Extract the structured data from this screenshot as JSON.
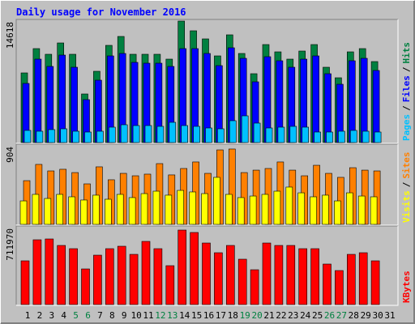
{
  "title": "Daily usage for November 2016",
  "separator": "/",
  "chart_data": [
    {
      "type": "bar",
      "ylim": [
        0,
        14618
      ],
      "yticks": [
        14618
      ],
      "series": [
        {
          "name": "Hits",
          "color": "#008040",
          "values": [
            8381,
            11305,
            10623,
            11987,
            10623,
            5847,
            8576,
            11695,
            12767,
            10623,
            10623,
            10623,
            10038,
            14618,
            13449,
            12474,
            10428,
            12962,
            10720,
            8284,
            11792,
            10915,
            10038,
            11012,
            11792,
            9063,
            7796,
            10915,
            11305,
            9745,
            null
          ]
        },
        {
          "name": "Files",
          "color": "#0000ff",
          "values": [
            7114,
            10038,
            9160,
            10525,
            9063,
            5165,
            7504,
            10427,
            10720,
            9648,
            9550,
            9550,
            9160,
            11304,
            11304,
            10720,
            9258,
            11402,
            10135,
            7309,
            10330,
            9842,
            9063,
            10038,
            10427,
            8283,
            7016,
            9842,
            10135,
            8673,
            null
          ]
        },
        {
          "name": "Pages",
          "color": "#00c0ff",
          "values": [
            1462,
            1364,
            1559,
            1657,
            1364,
            1267,
            1364,
            1852,
            2144,
            2046,
            2046,
            1949,
            2436,
            2046,
            1949,
            1754,
            1657,
            2631,
            3216,
            2339,
            1754,
            1852,
            1949,
            1852,
            1267,
            1267,
            1364,
            1462,
            1364,
            1267,
            null
          ]
        }
      ]
    },
    {
      "type": "bar",
      "ylim": [
        0,
        904
      ],
      "yticks": [
        904
      ],
      "series": [
        {
          "name": "Sites",
          "color": "#ff8000",
          "values": [
            503,
            690,
            615,
            634,
            596,
            466,
            662,
            513,
            587,
            559,
            578,
            699,
            569,
            643,
            718,
            587,
            857,
            867,
            596,
            624,
            643,
            718,
            624,
            559,
            680,
            587,
            541,
            652,
            624,
            615,
            null
          ]
        },
        {
          "name": "Visits",
          "color": "#ffff00",
          "values": [
            270,
            345,
            298,
            345,
            317,
            280,
            336,
            289,
            345,
            308,
            354,
            382,
            336,
            391,
            373,
            354,
            541,
            345,
            308,
            326,
            345,
            382,
            429,
            363,
            317,
            336,
            270,
            363,
            326,
            317,
            null
          ]
        }
      ]
    },
    {
      "type": "bar",
      "ylim": [
        0,
        711970
      ],
      "yticks": [
        711970
      ],
      "categories": [
        "1",
        "2",
        "3",
        "4",
        "5",
        "6",
        "7",
        "8",
        "9",
        "10",
        "11",
        "12",
        "13",
        "14",
        "15",
        "16",
        "17",
        "18",
        "19",
        "20",
        "21",
        "22",
        "23",
        "24",
        "25",
        "26",
        "27",
        "28",
        "29",
        "30",
        "31"
      ],
      "category_colors": [
        "#000000",
        "#000000",
        "#000000",
        "#000000",
        "#008040",
        "#008040",
        "#000000",
        "#000000",
        "#000000",
        "#000000",
        "#000000",
        "#008040",
        "#008040",
        "#000000",
        "#000000",
        "#000000",
        "#000000",
        "#000000",
        "#008040",
        "#008040",
        "#000000",
        "#000000",
        "#000000",
        "#000000",
        "#000000",
        "#008040",
        "#008040",
        "#000000",
        "#000000",
        "#000000",
        "#000000"
      ],
      "series": [
        {
          "name": "KBytes",
          "color": "#ff0000",
          "values": [
            404700,
            599500,
            607000,
            547000,
            517100,
            329700,
            457100,
            517100,
            539600,
            464600,
            584500,
            517100,
            359700,
            689400,
            667000,
            569500,
            479600,
            547000,
            419700,
            322200,
            569500,
            547000,
            547000,
            517100,
            517100,
            374700,
            314700,
            464600,
            479600,
            404700,
            null
          ]
        }
      ]
    }
  ]
}
